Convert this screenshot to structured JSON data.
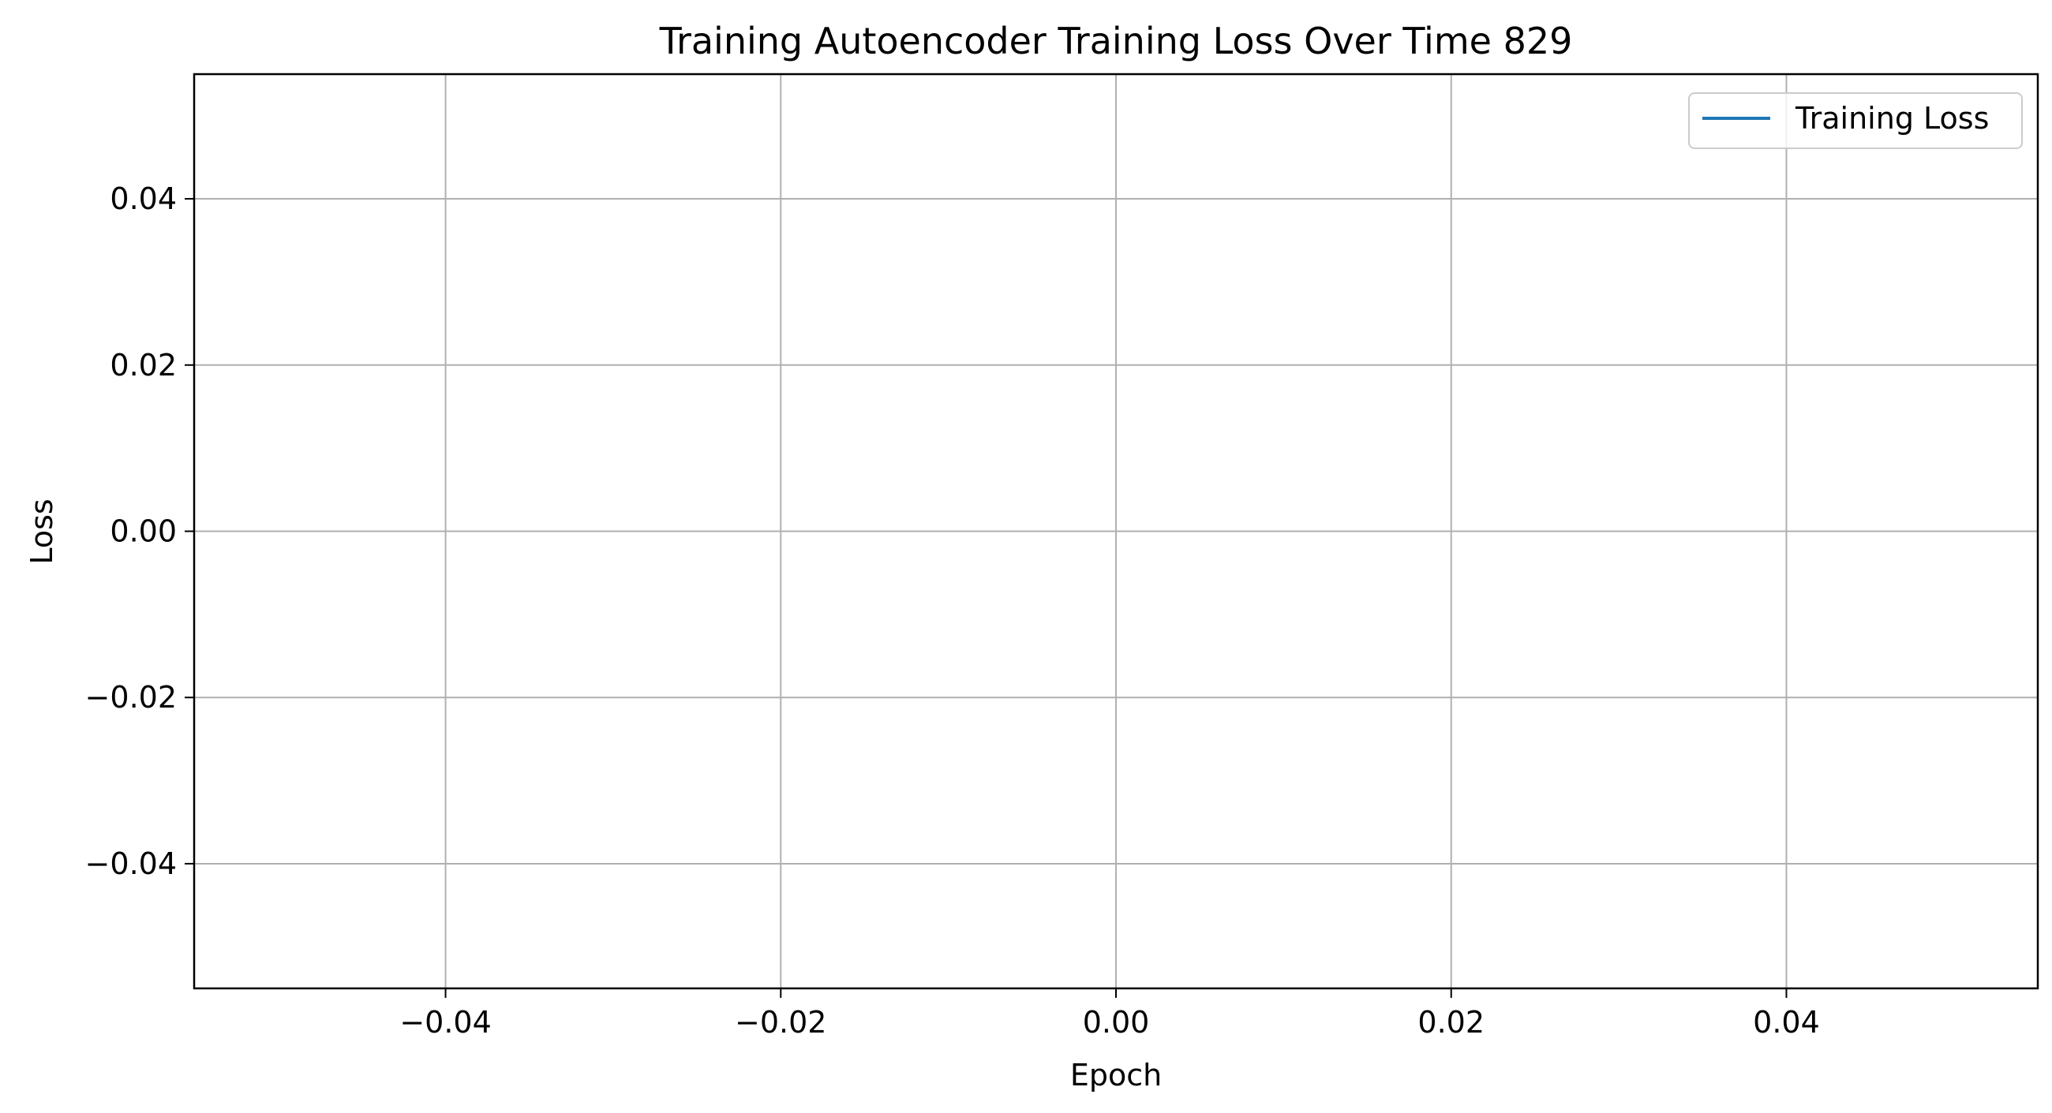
{
  "chart_data": {
    "type": "line",
    "title": "Training Autoencoder Training Loss Over Time 829",
    "xlabel": "Epoch",
    "ylabel": "Loss",
    "xlim": [
      -0.055,
      0.055
    ],
    "ylim": [
      -0.055,
      0.055
    ],
    "x_ticks": [
      -0.04,
      -0.02,
      0.0,
      0.02,
      0.04
    ],
    "x_tick_labels": [
      "−0.04",
      "−0.02",
      "0.00",
      "0.02",
      "0.04"
    ],
    "y_ticks": [
      -0.04,
      -0.02,
      0.0,
      0.02,
      0.04
    ],
    "y_tick_labels": [
      "−0.04",
      "−0.02",
      "0.00",
      "0.02",
      "0.04"
    ],
    "grid": true,
    "legend_position": "top-right",
    "series": [
      {
        "name": "Training Loss",
        "color": "#1f77b4",
        "x": [],
        "y": []
      }
    ]
  }
}
